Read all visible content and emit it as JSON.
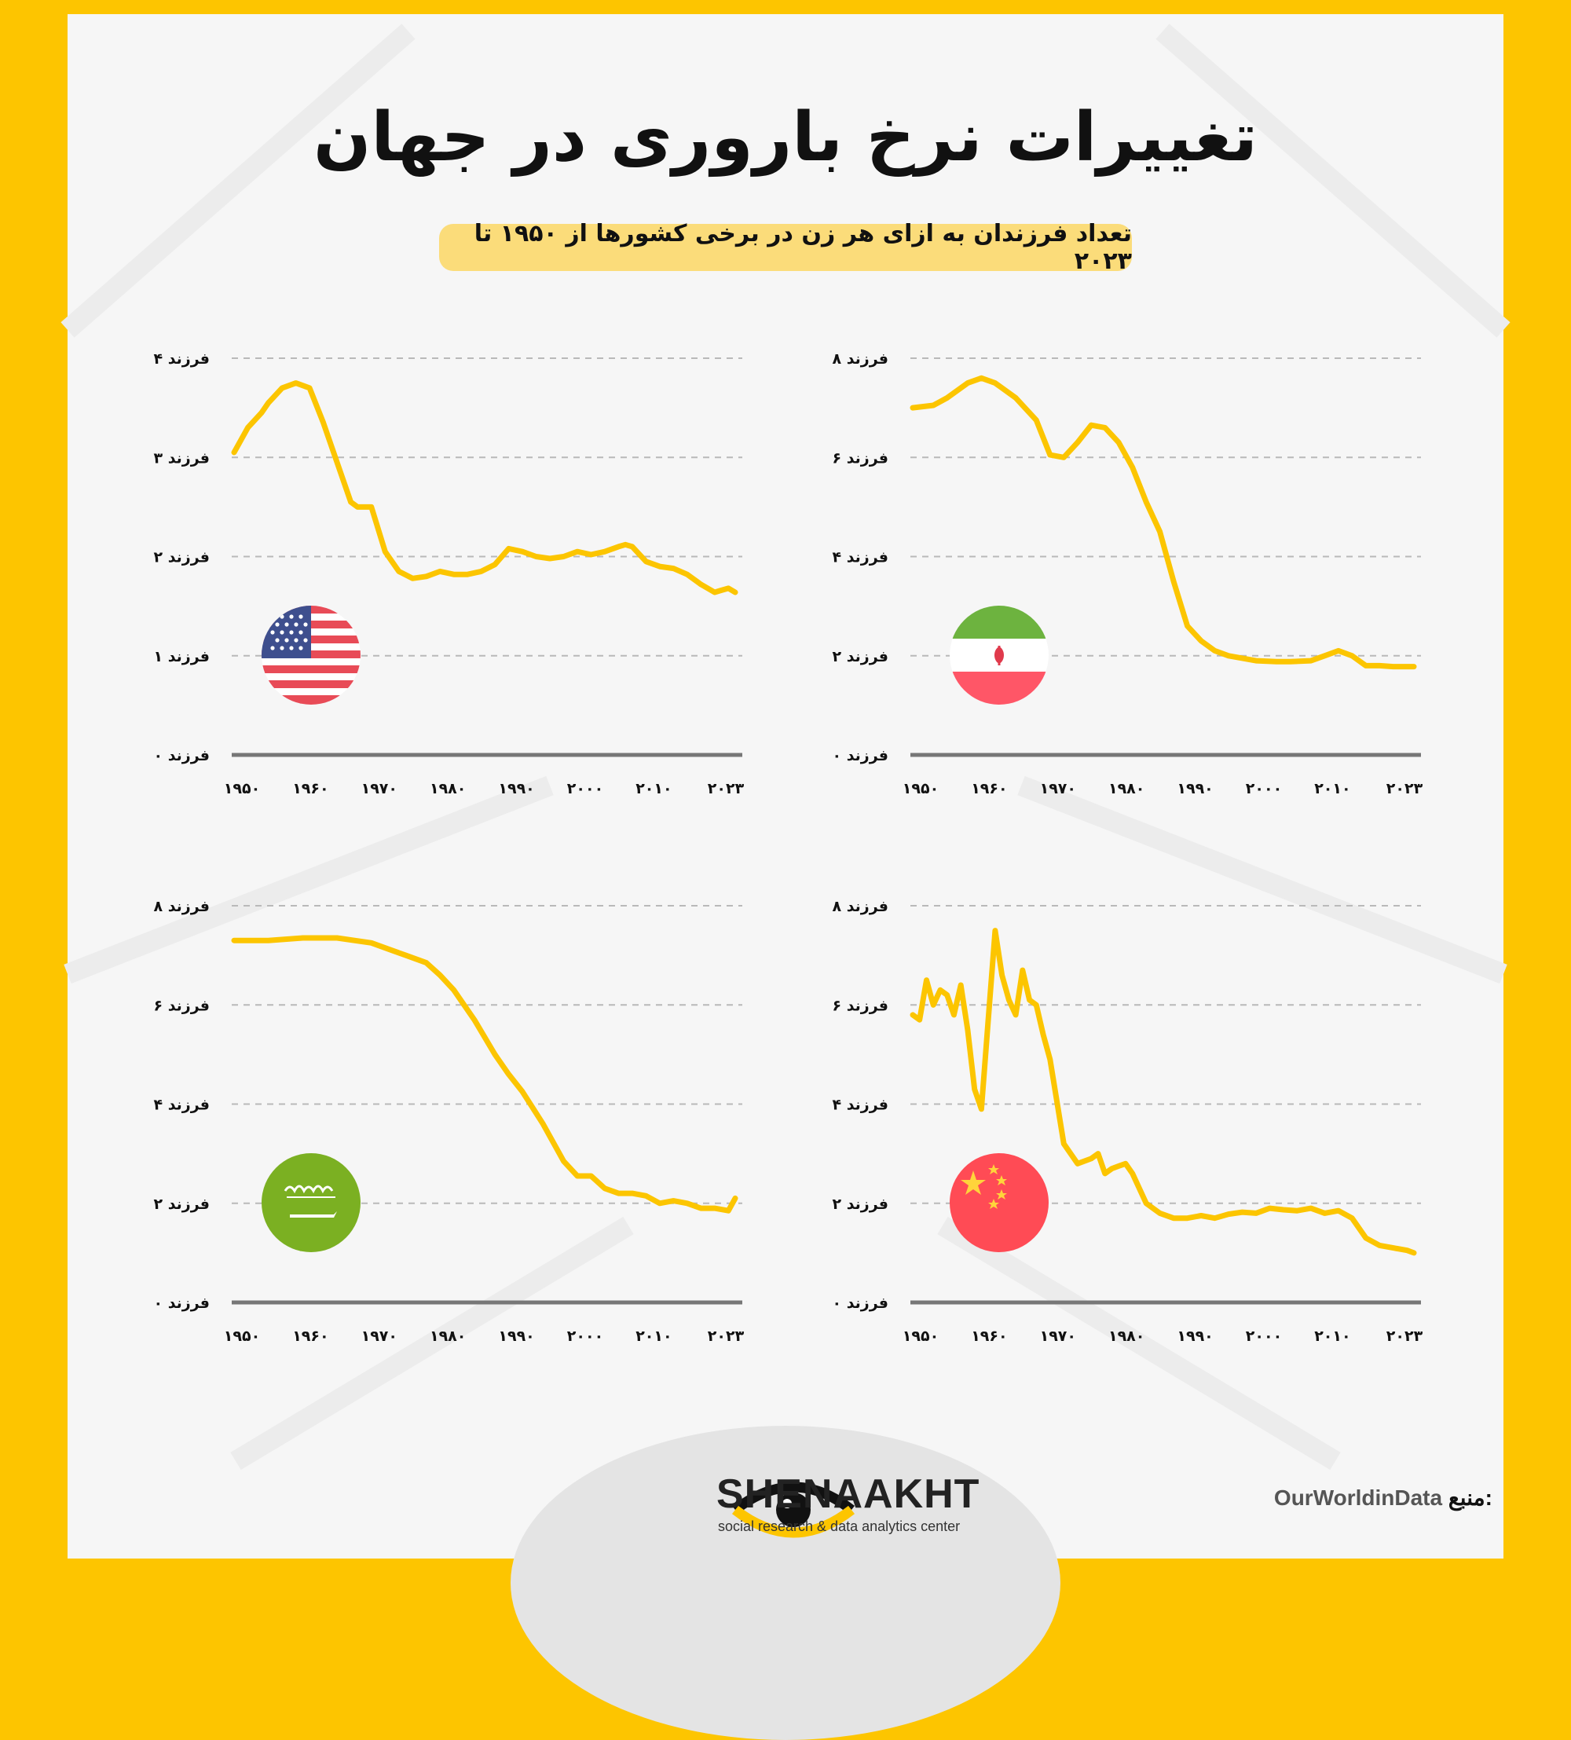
{
  "title": "تغییرات نرخ باروری در جهان",
  "subtitle": "تعداد فرزندان به ازای هر زن در برخی کشورها از ۱۹۵۰ تا ۲۰۲۳",
  "x_tick_labels": [
    "۱۹۵۰",
    "۱۹۶۰",
    "۱۹۷۰",
    "۱۹۸۰",
    "۱۹۹۰",
    "۲۰۰۰",
    "۲۰۱۰",
    "۲۰۲۳"
  ],
  "x_tick_values": [
    1950,
    1960,
    1970,
    1980,
    1990,
    2000,
    2010,
    2023
  ],
  "colors": {
    "line": "#fcc500",
    "background": "#f6f6f6",
    "frame": "#fdc500"
  },
  "chart_data": [
    {
      "type": "line",
      "flag": "united-states-flag-icon",
      "ylim": [
        0,
        4
      ],
      "y_tick_labels": [
        "۰ فرزند",
        "۱ فرزند",
        "۲ فرزند",
        "۳ فرزند",
        "۴ فرزند"
      ],
      "y_tick_values": [
        0,
        1,
        2,
        3,
        4
      ],
      "x": [
        1950,
        1952,
        1954,
        1955,
        1957,
        1959,
        1961,
        1963,
        1965,
        1967,
        1968,
        1970,
        1972,
        1974,
        1976,
        1978,
        1980,
        1982,
        1984,
        1986,
        1988,
        1990,
        1992,
        1994,
        1996,
        1998,
        2000,
        2002,
        2004,
        2006,
        2007,
        2008,
        2010,
        2012,
        2014,
        2016,
        2018,
        2020,
        2021,
        2022,
        2023
      ],
      "values": [
        3.05,
        3.3,
        3.45,
        3.55,
        3.7,
        3.75,
        3.7,
        3.35,
        2.95,
        2.55,
        2.5,
        2.5,
        2.05,
        1.85,
        1.78,
        1.8,
        1.85,
        1.82,
        1.82,
        1.85,
        1.92,
        2.08,
        2.05,
        2.0,
        1.98,
        2.0,
        2.05,
        2.02,
        2.05,
        2.1,
        2.12,
        2.1,
        1.95,
        1.9,
        1.88,
        1.82,
        1.72,
        1.64,
        1.66,
        1.68,
        1.64
      ]
    },
    {
      "type": "line",
      "flag": "iran-flag-icon",
      "ylim": [
        0,
        8
      ],
      "y_tick_labels": [
        "۰ فرزند",
        "۲ فرزند",
        "۴ فرزند",
        "۶ فرزند",
        "۸ فرزند"
      ],
      "y_tick_values": [
        0,
        2,
        4,
        6,
        8
      ],
      "x": [
        1950,
        1953,
        1955,
        1958,
        1960,
        1962,
        1965,
        1968,
        1970,
        1972,
        1974,
        1976,
        1978,
        1980,
        1982,
        1984,
        1986,
        1988,
        1990,
        1992,
        1994,
        1996,
        1998,
        2000,
        2003,
        2005,
        2008,
        2010,
        2012,
        2014,
        2016,
        2018,
        2020,
        2023
      ],
      "values": [
        7.0,
        7.05,
        7.2,
        7.5,
        7.6,
        7.5,
        7.2,
        6.75,
        6.05,
        6.0,
        6.3,
        6.65,
        6.6,
        6.3,
        5.8,
        5.1,
        4.5,
        3.5,
        2.6,
        2.3,
        2.1,
        2.0,
        1.95,
        1.9,
        1.88,
        1.88,
        1.9,
        2.0,
        2.1,
        2.0,
        1.8,
        1.8,
        1.78,
        1.78
      ]
    },
    {
      "type": "line",
      "flag": "saudi-arabia-flag-icon",
      "ylim": [
        0,
        8
      ],
      "y_tick_labels": [
        "۰ فرزند",
        "۲ فرزند",
        "۴ فرزند",
        "۶ فرزند",
        "۸ فرزند"
      ],
      "y_tick_values": [
        0,
        2,
        4,
        6,
        8
      ],
      "x": [
        1950,
        1955,
        1960,
        1965,
        1970,
        1973,
        1975,
        1978,
        1980,
        1982,
        1985,
        1988,
        1990,
        1992,
        1995,
        1998,
        2000,
        2002,
        2004,
        2006,
        2008,
        2010,
        2012,
        2014,
        2016,
        2018,
        2020,
        2022,
        2023
      ],
      "values": [
        7.3,
        7.3,
        7.35,
        7.35,
        7.25,
        7.1,
        7.0,
        6.85,
        6.6,
        6.3,
        5.7,
        5.0,
        4.6,
        4.25,
        3.6,
        2.85,
        2.55,
        2.55,
        2.3,
        2.2,
        2.2,
        2.15,
        2.0,
        2.05,
        2.0,
        1.9,
        1.9,
        1.85,
        2.1
      ]
    },
    {
      "type": "line",
      "flag": "china-flag-icon",
      "ylim": [
        0,
        8
      ],
      "y_tick_labels": [
        "۰ فرزند",
        "۲ فرزند",
        "۴ فرزند",
        "۶ فرزند",
        "۸ فرزند"
      ],
      "y_tick_values": [
        0,
        2,
        4,
        6,
        8
      ],
      "x": [
        1950,
        1951,
        1952,
        1953,
        1954,
        1955,
        1956,
        1957,
        1958,
        1959,
        1960,
        1961,
        1962,
        1963,
        1964,
        1965,
        1966,
        1967,
        1968,
        1969,
        1970,
        1972,
        1974,
        1976,
        1977,
        1978,
        1979,
        1980,
        1981,
        1982,
        1984,
        1986,
        1988,
        1990,
        1992,
        1994,
        1996,
        1998,
        2000,
        2002,
        2004,
        2006,
        2008,
        2010,
        2012,
        2014,
        2016,
        2018,
        2020,
        2022,
        2023
      ],
      "values": [
        5.8,
        5.7,
        6.5,
        6.0,
        6.3,
        6.2,
        5.8,
        6.4,
        5.5,
        4.3,
        3.9,
        5.7,
        7.5,
        6.6,
        6.1,
        5.8,
        6.7,
        6.1,
        6.0,
        5.4,
        4.9,
        3.2,
        2.8,
        2.9,
        3.0,
        2.6,
        2.7,
        2.75,
        2.8,
        2.6,
        2.0,
        1.8,
        1.7,
        1.7,
        1.75,
        1.7,
        1.78,
        1.82,
        1.8,
        1.9,
        1.87,
        1.85,
        1.9,
        1.8,
        1.85,
        1.7,
        1.3,
        1.15,
        1.1,
        1.05,
        1.0
      ]
    }
  ],
  "footer": {
    "brand": "SHENAAKHT",
    "brand_sub": "social research & data analytics center",
    "source_label": "منبع:",
    "source_value": "OurWorldinData"
  }
}
